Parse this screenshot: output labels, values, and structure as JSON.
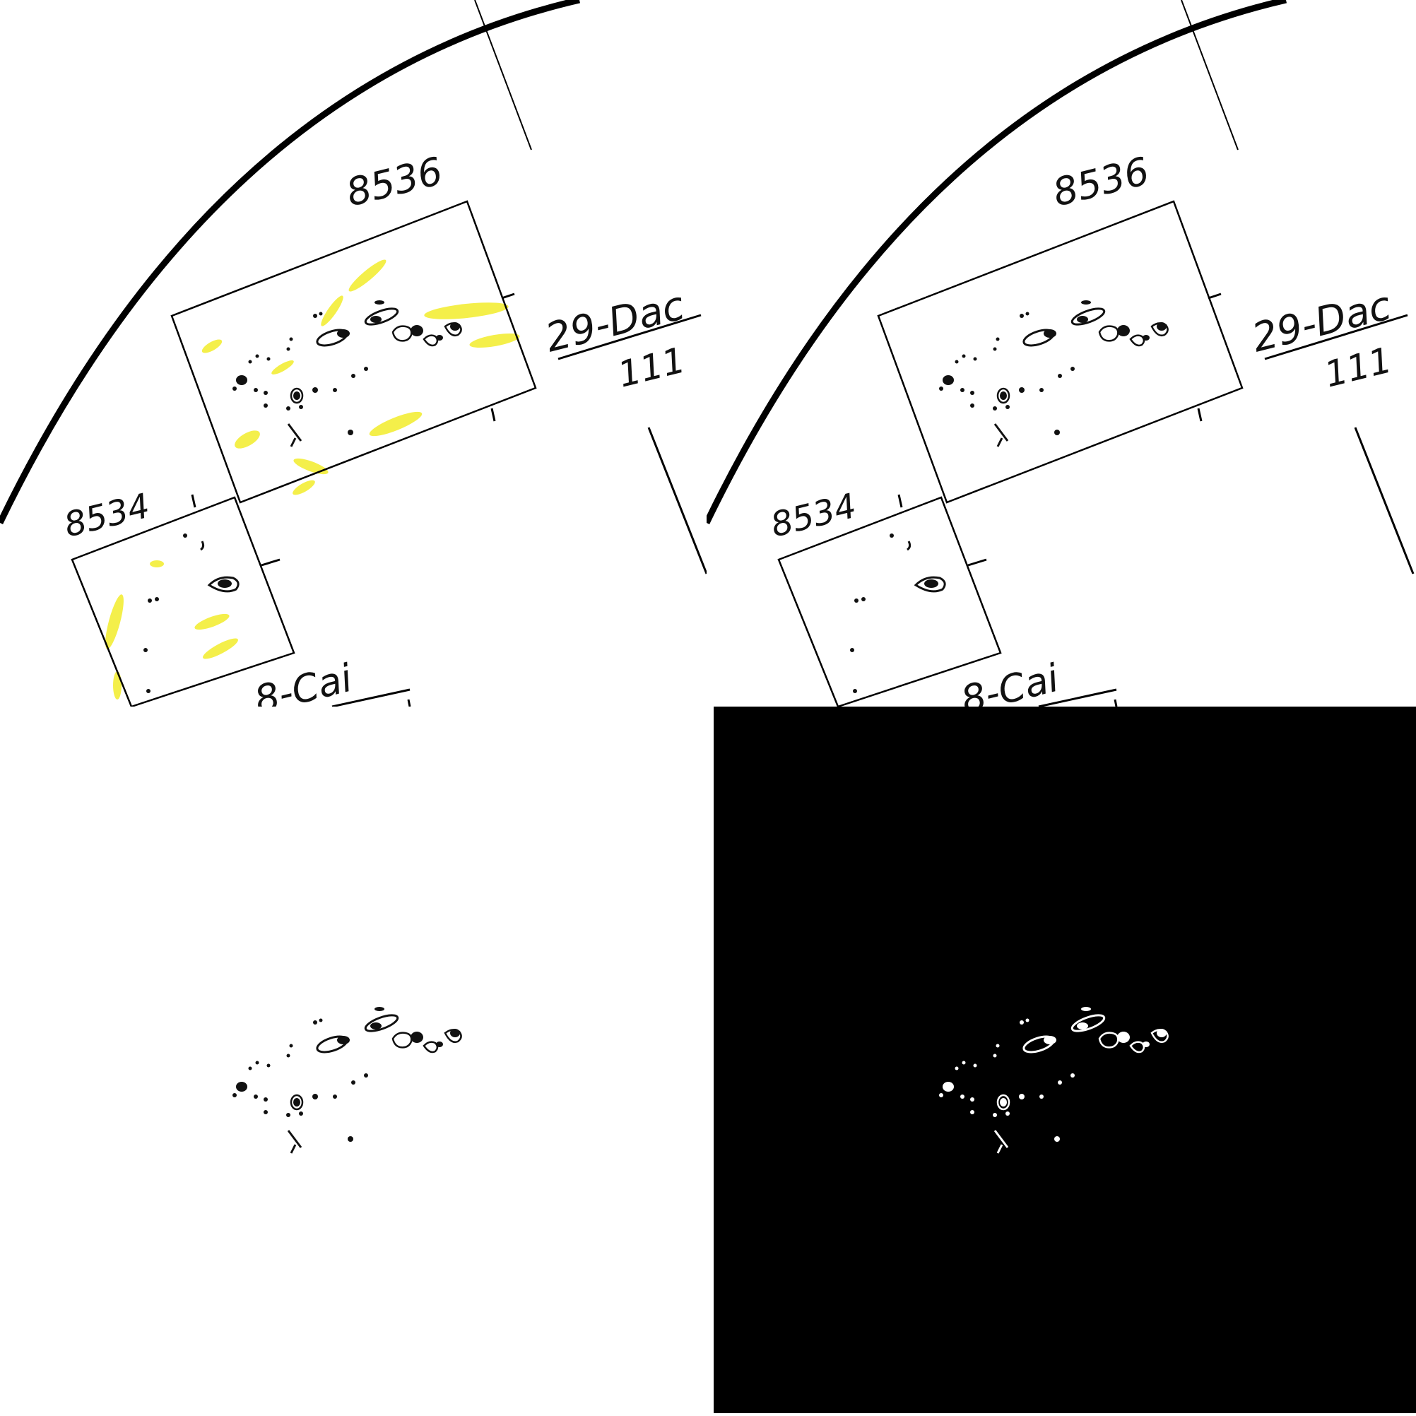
{
  "panels": [
    {
      "id": "original",
      "background": "#ffffff",
      "highlight_color": "#f2ec2a",
      "labels": {
        "group_a": "8536",
        "group_b": "8534",
        "region": "29-Dac",
        "region_number": "111",
        "partial_label": "8-Cai"
      }
    },
    {
      "id": "cleaned",
      "background": "#ffffff",
      "labels": {
        "group_a": "8536",
        "group_b": "8534",
        "region": "29-Dac",
        "region_number": "111",
        "partial_label": "8-Cai"
      }
    },
    {
      "id": "extracted",
      "background": "#ffffff",
      "ink": "#111111"
    },
    {
      "id": "mask",
      "background": "#000000",
      "ink": "#ffffff"
    }
  ]
}
